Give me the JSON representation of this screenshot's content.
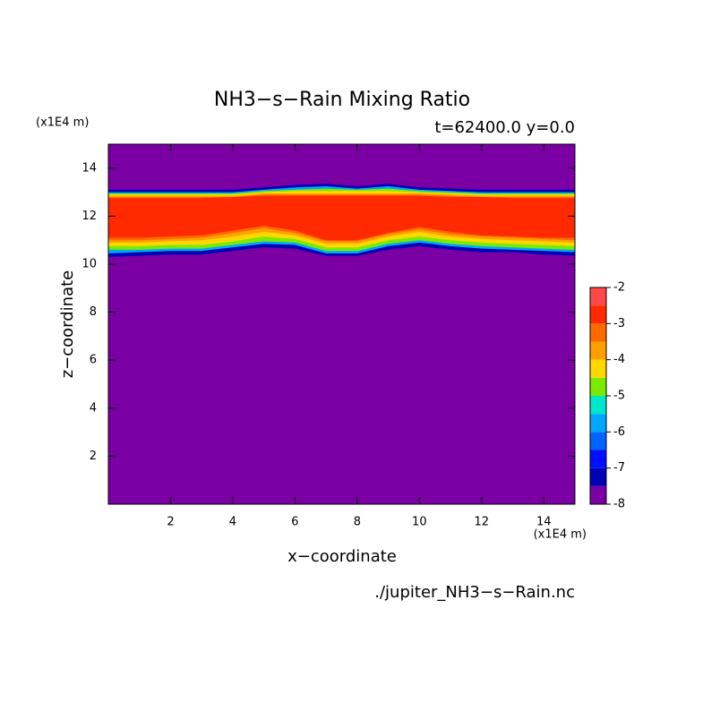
{
  "chart_data": {
    "type": "contour",
    "title": "NH3−s−Rain Mixing Ratio",
    "subtitle": "t=62400.0 y=0.0",
    "xlabel": "x−coordinate",
    "ylabel": "z−coordinate",
    "xunit": "(x1E4 m)",
    "yunit": "(x1E4 m)",
    "source": "./jupiter_NH3−s−Rain.nc",
    "xlim": [
      0,
      15
    ],
    "ylim": [
      0,
      15
    ],
    "xticks": [
      2,
      4,
      6,
      8,
      10,
      12,
      14
    ],
    "yticks": [
      2,
      4,
      6,
      8,
      10,
      12,
      14
    ],
    "background_color": "#7a00a4",
    "levels": [
      -8,
      -7.5,
      -7,
      -6.5,
      -6,
      -5.5,
      -5,
      -4.5,
      -4,
      -3.5,
      -3,
      -2.5,
      -2
    ],
    "colors": [
      "#7a00a4",
      "#0000b4",
      "#0010ff",
      "#0064ff",
      "#00a6ff",
      "#00e6cc",
      "#7aea00",
      "#ffd800",
      "#ffa000",
      "#ff6a00",
      "#ff2a00",
      "#ff4848",
      "#ffaaaa"
    ],
    "cbticks": [
      -2,
      -3,
      -4,
      -5,
      -6,
      -7,
      -8
    ],
    "x": [
      0,
      1,
      2,
      3,
      4,
      5,
      6,
      7,
      8,
      9,
      10,
      11,
      12,
      13,
      14,
      15
    ],
    "contours": [
      {
        "level": -7.5,
        "color": "#0000b4",
        "lower": [
          10.3,
          10.35,
          10.4,
          10.4,
          10.55,
          10.7,
          10.65,
          10.35,
          10.35,
          10.6,
          10.75,
          10.6,
          10.5,
          10.5,
          10.4,
          10.35
        ],
        "upper": [
          13.1,
          13.1,
          13.1,
          13.1,
          13.1,
          13.2,
          13.3,
          13.35,
          13.25,
          13.35,
          13.2,
          13.15,
          13.1,
          13.1,
          13.1,
          13.1
        ]
      },
      {
        "level": -6,
        "color": "#00a6ff",
        "lower": [
          10.45,
          10.5,
          10.55,
          10.55,
          10.7,
          10.85,
          10.8,
          10.45,
          10.45,
          10.75,
          10.9,
          10.75,
          10.65,
          10.6,
          10.55,
          10.5
        ],
        "upper": [
          13.0,
          13.0,
          13.0,
          13.0,
          13.0,
          13.1,
          13.2,
          13.25,
          13.15,
          13.25,
          13.1,
          13.05,
          13.0,
          13.0,
          13.0,
          13.0
        ]
      },
      {
        "level": -5,
        "color": "#7aea00",
        "lower": [
          10.6,
          10.6,
          10.65,
          10.65,
          10.8,
          10.95,
          10.9,
          10.55,
          10.55,
          10.85,
          11.0,
          10.85,
          10.75,
          10.7,
          10.65,
          10.6
        ],
        "upper": [
          12.95,
          12.95,
          12.95,
          12.95,
          12.95,
          13.05,
          13.1,
          13.15,
          13.1,
          13.15,
          13.05,
          13.0,
          12.95,
          12.95,
          12.95,
          12.95
        ]
      },
      {
        "level": -4.5,
        "color": "#ffd800",
        "lower": [
          10.75,
          10.75,
          10.8,
          10.8,
          10.95,
          11.15,
          11.05,
          10.7,
          10.7,
          11.0,
          11.15,
          11.0,
          10.9,
          10.85,
          10.8,
          10.75
        ],
        "upper": [
          12.9,
          12.9,
          12.9,
          12.9,
          12.9,
          13.0,
          13.05,
          13.05,
          13.05,
          13.05,
          13.0,
          12.95,
          12.9,
          12.9,
          12.9,
          12.9
        ]
      },
      {
        "level": -4,
        "color": "#ffa000",
        "lower": [
          10.9,
          10.9,
          10.95,
          11.0,
          11.15,
          11.35,
          11.2,
          10.85,
          10.85,
          11.15,
          11.35,
          11.15,
          11.05,
          11.0,
          10.95,
          10.9
        ],
        "upper": [
          12.85,
          12.85,
          12.85,
          12.85,
          12.85,
          12.95,
          12.95,
          12.95,
          12.95,
          12.95,
          12.95,
          12.9,
          12.85,
          12.85,
          12.85,
          12.85
        ]
      },
      {
        "level": -3.5,
        "color": "#ff6a00",
        "lower": [
          11.0,
          11.0,
          11.05,
          11.1,
          11.3,
          11.5,
          11.3,
          10.95,
          10.95,
          11.25,
          11.45,
          11.25,
          11.15,
          11.1,
          11.05,
          11.0
        ],
        "upper": [
          12.8,
          12.8,
          12.8,
          12.8,
          12.8,
          12.9,
          12.9,
          12.9,
          12.9,
          12.9,
          12.9,
          12.85,
          12.8,
          12.8,
          12.8,
          12.8
        ]
      },
      {
        "level": -3,
        "color": "#ff2a00",
        "lower": [
          11.1,
          11.1,
          11.15,
          11.2,
          11.4,
          11.6,
          11.4,
          11.0,
          11.0,
          11.3,
          11.55,
          11.35,
          11.2,
          11.15,
          11.1,
          11.1
        ],
        "upper": [
          12.75,
          12.75,
          12.75,
          12.75,
          12.8,
          12.85,
          12.85,
          12.85,
          12.85,
          12.85,
          12.85,
          12.8,
          12.8,
          12.75,
          12.75,
          12.75
        ]
      }
    ]
  }
}
